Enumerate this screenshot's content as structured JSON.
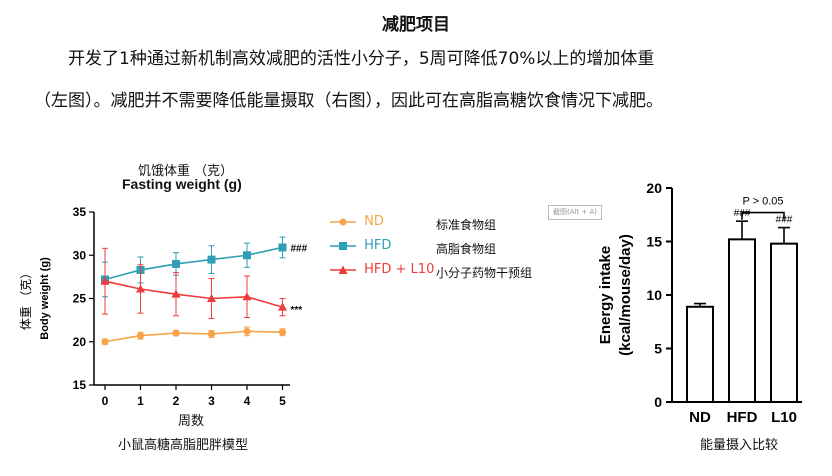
{
  "header": {
    "title": "减肥项目",
    "line1": "开发了1种通过新机制高效减肥的活性小分子，5周可降低70%以上的增加体重",
    "line2": "（左图）。减肥并不需要降低能量摄取（右图），因此可在高脂高糖饮食情况下减肥。"
  },
  "left_chart_labels": {
    "cn_title": "饥饿体重  （克）",
    "cn_ylabel": "体重  （克）",
    "cn_xlabel": "周数",
    "cn_caption": "小鼠高糖高脂肥胖模型",
    "legend_cn": [
      "标准食物组",
      "高脂食物组",
      "小分子药物干预组"
    ],
    "hfd_mark": "###",
    "l10_mark": "***"
  },
  "right_chart_labels": {
    "cn_caption": "能量摄入比较",
    "pvalue": "P > 0.05"
  },
  "watermark_tag": "截图(Alt + A)",
  "colors": {
    "nd": "#f5a44a",
    "hfd": "#2e9fb5",
    "l10": "#ee3b3b"
  },
  "chart_data": [
    {
      "type": "line",
      "title": "Fasting weight (g)",
      "xlabel": "",
      "ylabel": "Body weight (g)",
      "x": [
        0,
        1,
        2,
        3,
        4,
        5
      ],
      "ylim": [
        15,
        35
      ],
      "yticks": [
        15,
        20,
        25,
        30,
        35
      ],
      "series": [
        {
          "name": "ND",
          "values": [
            20.0,
            20.7,
            21.0,
            20.9,
            21.2,
            21.1
          ],
          "err": [
            0.3,
            0.4,
            0.3,
            0.4,
            0.5,
            0.4
          ]
        },
        {
          "name": "HFD",
          "values": [
            27.2,
            28.3,
            29.0,
            29.5,
            30.0,
            30.9
          ],
          "err": [
            2.0,
            1.5,
            1.3,
            1.6,
            1.4,
            1.2
          ]
        },
        {
          "name": "HFD + L10",
          "values": [
            27.0,
            26.1,
            25.5,
            25.0,
            25.2,
            24.0
          ],
          "err": [
            3.8,
            2.8,
            2.5,
            2.3,
            2.4,
            1.0
          ]
        }
      ]
    },
    {
      "type": "bar",
      "title": "",
      "xlabel": "",
      "ylabel": "Energy intake (kcal/mouse/day)",
      "categories": [
        "ND",
        "HFD",
        "L10"
      ],
      "values": [
        8.9,
        15.2,
        14.8
      ],
      "err": [
        0.3,
        1.7,
        1.5
      ],
      "annotations": [
        "",
        "###",
        "###"
      ],
      "ylim": [
        0,
        20
      ],
      "yticks": [
        0,
        5,
        10,
        15,
        20
      ]
    }
  ]
}
